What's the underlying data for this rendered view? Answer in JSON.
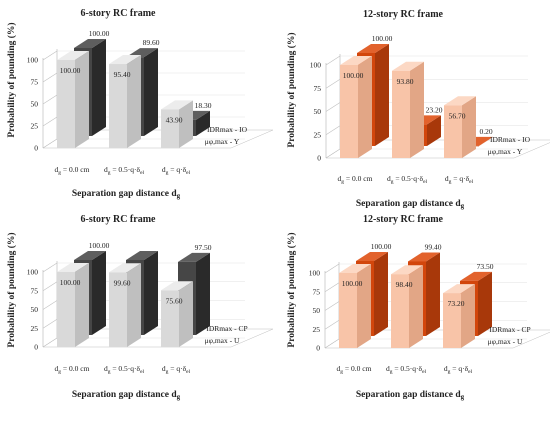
{
  "chart_data": [
    {
      "type": "bar",
      "title": "6-story RC frame",
      "ylabel": "Probability of pounding (%)",
      "xlabel": "Separation gap distance d",
      "xlabel_sub": "g",
      "ylim": [
        0,
        100
      ],
      "yticks": [
        "0",
        "25",
        "50",
        "75",
        "100"
      ],
      "categories": [
        {
          "main": "d",
          "sub": "g",
          "rest": " = 0.0 cm"
        },
        {
          "main": "d",
          "sub": "g",
          "rest": " = 0.5·q·δ",
          "sub2": "el"
        },
        {
          "main": "d",
          "sub": "g",
          "rest": " = q·δ",
          "sub2": "el"
        }
      ],
      "series": [
        {
          "name": "μφ,max - Y",
          "values": [
            100.0,
            95.4,
            43.9
          ],
          "labels": [
            "100.00",
            "95.40",
            "43.90"
          ]
        },
        {
          "name": "IDRmax - IO",
          "values": [
            100.0,
            89.6,
            18.3
          ],
          "labels": [
            "100.00",
            "89.60",
            "18.30"
          ]
        }
      ]
    },
    {
      "type": "bar",
      "title": "12-story RC frame",
      "ylabel": "Probability of pounding (%)",
      "xlabel": "Separation gap distance d",
      "xlabel_sub": "g",
      "ylim": [
        0,
        100
      ],
      "yticks": [
        "0",
        "25",
        "50",
        "75",
        "100"
      ],
      "categories": [
        {
          "main": "d",
          "sub": "g",
          "rest": " = 0.0 cm"
        },
        {
          "main": "d",
          "sub": "g",
          "rest": " = 0.5·q·δ",
          "sub2": "el"
        },
        {
          "main": "d",
          "sub": "g",
          "rest": " = q·δ",
          "sub2": "el"
        }
      ],
      "series": [
        {
          "name": "μφ,max - Y",
          "values": [
            100.0,
            93.8,
            56.7
          ],
          "labels": [
            "100.00",
            "93.80",
            "56.70"
          ]
        },
        {
          "name": "IDRmax - IO",
          "values": [
            100.0,
            23.2,
            0.2
          ],
          "labels": [
            "100.00",
            "23.20",
            "0.20"
          ]
        }
      ]
    },
    {
      "type": "bar",
      "title": "6-story RC frame",
      "ylabel": "Probability of pounding (%)",
      "xlabel": "Separation gap distance d",
      "xlabel_sub": "g",
      "ylim": [
        0,
        100
      ],
      "yticks": [
        "0",
        "25",
        "50",
        "75",
        "100"
      ],
      "categories": [
        {
          "main": "d",
          "sub": "g",
          "rest": " = 0.0 cm"
        },
        {
          "main": "d",
          "sub": "g",
          "rest": " = 0.5·q·δ",
          "sub2": "el"
        },
        {
          "main": "d",
          "sub": "g",
          "rest": " = q·δ",
          "sub2": "el"
        }
      ],
      "series": [
        {
          "name": "μφ,max - U",
          "values": [
            100.0,
            99.6,
            75.6
          ],
          "labels": [
            "100.00",
            "99.60",
            "75.60"
          ]
        },
        {
          "name": "IDRmax - CP",
          "values": [
            100.0,
            100.0,
            97.5
          ],
          "labels": [
            "100.00",
            "",
            "97.50"
          ]
        }
      ]
    },
    {
      "type": "bar",
      "title": "12-story RC frame",
      "ylabel": "Probability of pounding (%)",
      "xlabel": "Separation gap distance d",
      "xlabel_sub": "g",
      "ylim": [
        0,
        100
      ],
      "yticks": [
        "0",
        "25",
        "50",
        "75",
        "100"
      ],
      "categories": [
        {
          "main": "d",
          "sub": "g",
          "rest": " = 0.0 cm"
        },
        {
          "main": "d",
          "sub": "g",
          "rest": " = 0.5·q·δ",
          "sub2": "el"
        },
        {
          "main": "d",
          "sub": "g",
          "rest": " = q·δ",
          "sub2": "el"
        }
      ],
      "series": [
        {
          "name": "μφ,max - U",
          "values": [
            100.0,
            98.4,
            73.2
          ],
          "labels": [
            "100.00",
            "98.40",
            "73.20"
          ]
        },
        {
          "name": "IDRmax - CP",
          "values": [
            100.0,
            99.4,
            73.5
          ],
          "labels": [
            "100.00",
            "99.40",
            "73.50"
          ]
        }
      ]
    }
  ],
  "colors": {
    "six_front": [
      "#d9d9d9",
      "#bfbfbf",
      "#ececec"
    ],
    "six_back": [
      "#464646",
      "#2a2a2a",
      "#5e5e5e"
    ],
    "twelve_front": [
      "#f8c4a8",
      "#e2a686",
      "#fcd8c4"
    ],
    "twelve_back": [
      "#d2460c",
      "#a8380a",
      "#e2622c"
    ],
    "axis": "#bfbfbf"
  }
}
